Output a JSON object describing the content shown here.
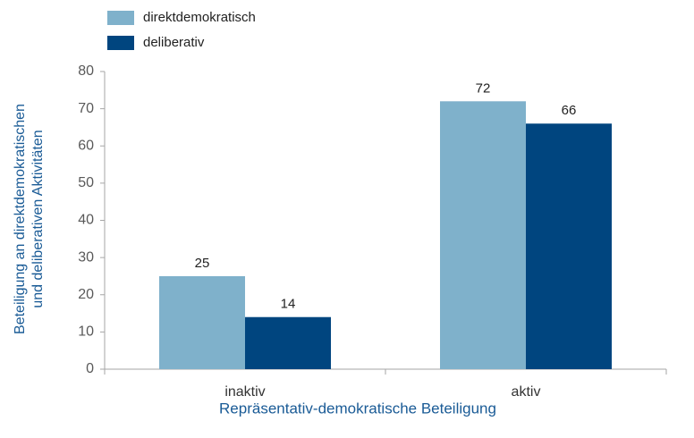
{
  "chart_data": {
    "type": "bar",
    "categories": [
      "inaktiv",
      "aktiv"
    ],
    "series": [
      {
        "name": "direktdemokratisch",
        "color": "#7fb1cb",
        "values": [
          25,
          72
        ]
      },
      {
        "name": "deliberativ",
        "color": "#00457f",
        "values": [
          14,
          66
        ]
      }
    ],
    "ylim": [
      0,
      80
    ],
    "yticks": [
      0,
      10,
      20,
      30,
      40,
      50,
      60,
      70,
      80
    ],
    "xlabel": "Repräsentativ-demokratische Beteiligung",
    "ylabel": [
      "Beteiligung an direktdemokratischen",
      "und deliberativen Aktivitäten"
    ],
    "grid": false,
    "legend": "top-left"
  }
}
